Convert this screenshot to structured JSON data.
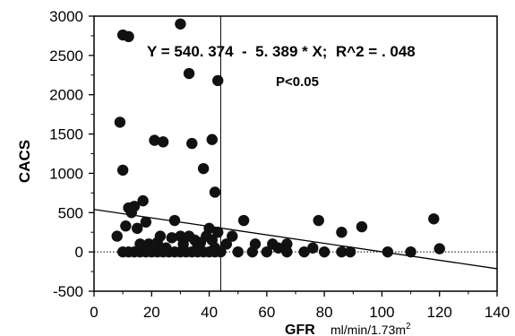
{
  "chart_data": {
    "type": "scatter",
    "title": "",
    "xlabel": "GFR",
    "xlabel_unit_prefix": "ml/min/1.73m",
    "xlabel_unit_superscript": "2",
    "ylabel": "CACS",
    "xlim": [
      0,
      140
    ],
    "ylim": [
      -500,
      3000
    ],
    "xticks": [
      0,
      20,
      40,
      60,
      80,
      100,
      120,
      140
    ],
    "xtick_labels": [
      "0",
      "20",
      "40",
      "60",
      "80",
      "100",
      "120",
      "140"
    ],
    "yticks": [
      -500,
      0,
      500,
      1000,
      1500,
      2000,
      2500,
      3000
    ],
    "ytick_labels": [
      "-500",
      "0",
      "500",
      "1000",
      "1500",
      "2000",
      "2500",
      "3000"
    ],
    "grid": false,
    "regression": {
      "intercept": 540.374,
      "slope": -5.389,
      "x_range": [
        0,
        140
      ]
    },
    "reference_lines": {
      "vertical_x": 44,
      "horizontal_y": 0
    },
    "annotations": {
      "equation": "Y = 540. 374  -  5. 389 * X;  R^2 = . 048",
      "pvalue": "P<0.05"
    },
    "points": [
      [
        10,
        2760
      ],
      [
        12,
        2740
      ],
      [
        30,
        2900
      ],
      [
        33,
        2270
      ],
      [
        43,
        2180
      ],
      [
        9,
        1650
      ],
      [
        10,
        1040
      ],
      [
        21,
        1420
      ],
      [
        24,
        1400
      ],
      [
        34,
        1380
      ],
      [
        38,
        1060
      ],
      [
        41,
        1430
      ],
      [
        42,
        760
      ],
      [
        8,
        200
      ],
      [
        11,
        330
      ],
      [
        12,
        560
      ],
      [
        13,
        500
      ],
      [
        14,
        580
      ],
      [
        15,
        300
      ],
      [
        16,
        100
      ],
      [
        17,
        650
      ],
      [
        18,
        380
      ],
      [
        19,
        100
      ],
      [
        22,
        120
      ],
      [
        23,
        200
      ],
      [
        25,
        50
      ],
      [
        27,
        180
      ],
      [
        28,
        400
      ],
      [
        30,
        200
      ],
      [
        31,
        100
      ],
      [
        33,
        200
      ],
      [
        35,
        150
      ],
      [
        36,
        80
      ],
      [
        37,
        120
      ],
      [
        39,
        200
      ],
      [
        40,
        300
      ],
      [
        41,
        150
      ],
      [
        42,
        50
      ],
      [
        43,
        250
      ],
      [
        46,
        100
      ],
      [
        48,
        200
      ],
      [
        52,
        400
      ],
      [
        56,
        100
      ],
      [
        62,
        100
      ],
      [
        64,
        50
      ],
      [
        67,
        100
      ],
      [
        76,
        50
      ],
      [
        78,
        400
      ],
      [
        86,
        250
      ],
      [
        93,
        320
      ],
      [
        118,
        420
      ],
      [
        10,
        0
      ],
      [
        12,
        0
      ],
      [
        14,
        0
      ],
      [
        16,
        0
      ],
      [
        18,
        0
      ],
      [
        20,
        0
      ],
      [
        22,
        0
      ],
      [
        24,
        0
      ],
      [
        26,
        0
      ],
      [
        28,
        0
      ],
      [
        30,
        0
      ],
      [
        32,
        0
      ],
      [
        34,
        0
      ],
      [
        36,
        0
      ],
      [
        38,
        0
      ],
      [
        40,
        0
      ],
      [
        42,
        0
      ],
      [
        44,
        0
      ],
      [
        50,
        0
      ],
      [
        55,
        0
      ],
      [
        60,
        0
      ],
      [
        67,
        0
      ],
      [
        73,
        0
      ],
      [
        80,
        0
      ],
      [
        86,
        0
      ],
      [
        89,
        0
      ],
      [
        102,
        0
      ],
      [
        110,
        0
      ],
      [
        120,
        40
      ]
    ]
  }
}
